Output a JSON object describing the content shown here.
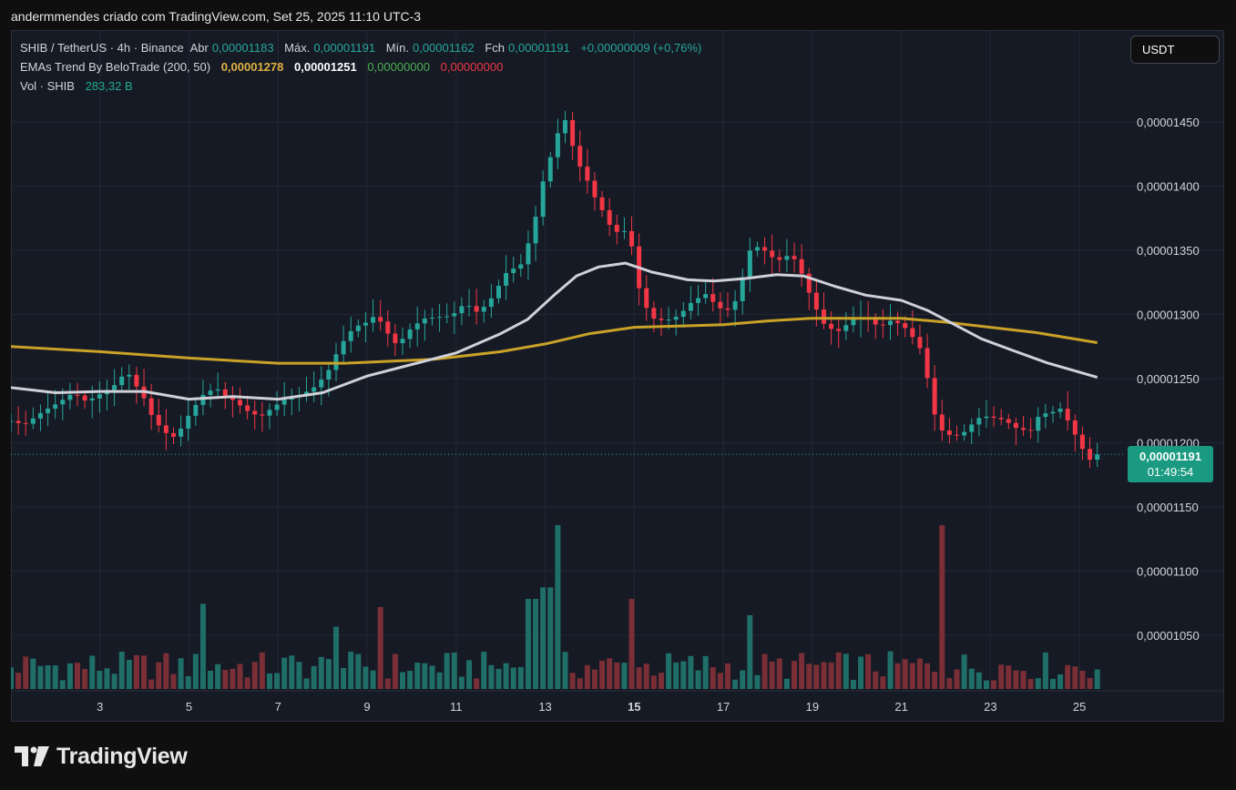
{
  "header": {
    "attribution": "andermmendes criado com TradingView.com, Set 25, 2025 11:10 UTC-3"
  },
  "legend": {
    "symbol": "SHIB / TetherUS · 4h · Binance",
    "open_label": "Abr",
    "open": "0,00001183",
    "high_label": "Máx.",
    "high": "0,00001191",
    "low_label": "Mín.",
    "low": "0,00001162",
    "close_label": "Fch",
    "close": "0,00001191",
    "change": "+0,00000009 (+0,76%)",
    "ema_title": "EMAs Trend By BeloTrade (200, 50)",
    "ema200": "0,00001278",
    "ema50": "0,00001251",
    "sig1": "0,00000000",
    "sig2": "0,00000000",
    "vol_title": "Vol · SHIB",
    "vol_value": "283,32 B"
  },
  "currency_button": "USDT",
  "price_tag": {
    "price": "0,00001191",
    "countdown": "01:49:54"
  },
  "brand": {
    "name": "TradingView"
  },
  "colors": {
    "up": "#26a69a",
    "down": "#f23645",
    "ema200": "#c9a227",
    "ema50": "#d0d0d8",
    "vol_up": "#1f6f68",
    "vol_down": "#7a2e36",
    "background": "#161a25"
  },
  "chart_data": {
    "type": "candlestick",
    "interval": "4h",
    "x_axis": {
      "range": [
        1.0,
        25.55
      ],
      "ticks": [
        {
          "label": "3",
          "value": 3,
          "bold": false
        },
        {
          "label": "5",
          "value": 5,
          "bold": false
        },
        {
          "label": "7",
          "value": 7,
          "bold": false
        },
        {
          "label": "9",
          "value": 9,
          "bold": false
        },
        {
          "label": "11",
          "value": 11,
          "bold": false
        },
        {
          "label": "13",
          "value": 13,
          "bold": false
        },
        {
          "label": "15",
          "value": 15,
          "bold": true
        },
        {
          "label": "17",
          "value": 17,
          "bold": false
        },
        {
          "label": "19",
          "value": 19,
          "bold": false
        },
        {
          "label": "21",
          "value": 21,
          "bold": false
        },
        {
          "label": "23",
          "value": 23,
          "bold": false
        },
        {
          "label": "25",
          "value": 25,
          "bold": false
        }
      ]
    },
    "y_axis": {
      "range": [
        1.01e-05,
        1.49e-05
      ],
      "ticks": [
        {
          "label": "0,00001450",
          "value": 1.45e-05
        },
        {
          "label": "0,00001400",
          "value": 1.4e-05
        },
        {
          "label": "0,00001350",
          "value": 1.35e-05
        },
        {
          "label": "0,00001300",
          "value": 1.3e-05
        },
        {
          "label": "0,00001250",
          "value": 1.25e-05
        },
        {
          "label": "0,00001200",
          "value": 1.2e-05
        },
        {
          "label": "0,00001150",
          "value": 1.15e-05
        },
        {
          "label": "0,00001100",
          "value": 1.1e-05
        },
        {
          "label": "0,00001050",
          "value": 1.05e-05
        }
      ]
    },
    "last_price": 1.191e-05,
    "price_points": [
      [
        1.0,
        1.217
      ],
      [
        1.3,
        1.214
      ],
      [
        1.7,
        1.224
      ],
      [
        2.1,
        1.232
      ],
      [
        2.4,
        1.239
      ],
      [
        2.7,
        1.232
      ],
      [
        3.0,
        1.238
      ],
      [
        3.3,
        1.244
      ],
      [
        3.6,
        1.256
      ],
      [
        3.8,
        1.245
      ],
      [
        4.0,
        1.234
      ],
      [
        4.2,
        1.218
      ],
      [
        4.5,
        1.207
      ],
      [
        4.7,
        1.204
      ],
      [
        5.0,
        1.222
      ],
      [
        5.3,
        1.237
      ],
      [
        5.6,
        1.243
      ],
      [
        5.8,
        1.237
      ],
      [
        6.0,
        1.233
      ],
      [
        6.3,
        1.225
      ],
      [
        6.6,
        1.22
      ],
      [
        6.9,
        1.228
      ],
      [
        7.2,
        1.235
      ],
      [
        7.5,
        1.237
      ],
      [
        7.8,
        1.243
      ],
      [
        8.1,
        1.254
      ],
      [
        8.4,
        1.276
      ],
      [
        8.7,
        1.29
      ],
      [
        9.0,
        1.294
      ],
      [
        9.2,
        1.3
      ],
      [
        9.4,
        1.289
      ],
      [
        9.6,
        1.277
      ],
      [
        9.8,
        1.281
      ],
      [
        10.0,
        1.29
      ],
      [
        10.3,
        1.297
      ],
      [
        10.6,
        1.298
      ],
      [
        10.9,
        1.299
      ],
      [
        11.2,
        1.309
      ],
      [
        11.5,
        1.301
      ],
      [
        11.8,
        1.313
      ],
      [
        12.0,
        1.325
      ],
      [
        12.2,
        1.337
      ],
      [
        12.4,
        1.334
      ],
      [
        12.6,
        1.353
      ],
      [
        12.8,
        1.378
      ],
      [
        13.0,
        1.412
      ],
      [
        13.2,
        1.43
      ],
      [
        13.4,
        1.457
      ],
      [
        13.55,
        1.44
      ],
      [
        13.7,
        1.42
      ],
      [
        13.9,
        1.408
      ],
      [
        14.1,
        1.392
      ],
      [
        14.3,
        1.38
      ],
      [
        14.5,
        1.366
      ],
      [
        14.7,
        1.363
      ],
      [
        14.9,
        1.368
      ],
      [
        15.0,
        1.333
      ],
      [
        15.2,
        1.31
      ],
      [
        15.4,
        1.297
      ],
      [
        15.7,
        1.295
      ],
      [
        16.0,
        1.299
      ],
      [
        16.3,
        1.31
      ],
      [
        16.6,
        1.316
      ],
      [
        16.9,
        1.305
      ],
      [
        17.2,
        1.303
      ],
      [
        17.4,
        1.325
      ],
      [
        17.6,
        1.35
      ],
      [
        17.8,
        1.353
      ],
      [
        18.0,
        1.348
      ],
      [
        18.2,
        1.341
      ],
      [
        18.4,
        1.346
      ],
      [
        18.6,
        1.343
      ],
      [
        18.8,
        1.329
      ],
      [
        19.0,
        1.31
      ],
      [
        19.3,
        1.29
      ],
      [
        19.6,
        1.287
      ],
      [
        19.9,
        1.296
      ],
      [
        20.2,
        1.298
      ],
      [
        20.5,
        1.29
      ],
      [
        20.8,
        1.296
      ],
      [
        21.1,
        1.289
      ],
      [
        21.4,
        1.276
      ],
      [
        21.6,
        1.248
      ],
      [
        21.8,
        1.213
      ],
      [
        22.0,
        1.207
      ],
      [
        22.2,
        1.205
      ],
      [
        22.4,
        1.208
      ],
      [
        22.6,
        1.215
      ],
      [
        22.8,
        1.221
      ],
      [
        23.0,
        1.22
      ],
      [
        23.3,
        1.218
      ],
      [
        23.6,
        1.211
      ],
      [
        23.9,
        1.209
      ],
      [
        24.1,
        1.222
      ],
      [
        24.4,
        1.224
      ],
      [
        24.6,
        1.227
      ],
      [
        24.8,
        1.213
      ],
      [
        25.0,
        1.2
      ],
      [
        25.2,
        1.186
      ],
      [
        25.4,
        1.191
      ]
    ],
    "ema200_points": [
      [
        1,
        1.275
      ],
      [
        3,
        1.271
      ],
      [
        5,
        1.266
      ],
      [
        7,
        1.262
      ],
      [
        8.5,
        1.262
      ],
      [
        10.5,
        1.265
      ],
      [
        12,
        1.271
      ],
      [
        13,
        1.277
      ],
      [
        14,
        1.285
      ],
      [
        15,
        1.29
      ],
      [
        16,
        1.291
      ],
      [
        17,
        1.292
      ],
      [
        18,
        1.295
      ],
      [
        19,
        1.297
      ],
      [
        20,
        1.297
      ],
      [
        21,
        1.297
      ],
      [
        22,
        1.294
      ],
      [
        23,
        1.29
      ],
      [
        24,
        1.286
      ],
      [
        25.4,
        1.278
      ]
    ],
    "ema50_points": [
      [
        1,
        1.243
      ],
      [
        2,
        1.239
      ],
      [
        3,
        1.24
      ],
      [
        4,
        1.24
      ],
      [
        5,
        1.234
      ],
      [
        6,
        1.236
      ],
      [
        7,
        1.234
      ],
      [
        8,
        1.239
      ],
      [
        9,
        1.252
      ],
      [
        10,
        1.261
      ],
      [
        11,
        1.27
      ],
      [
        12,
        1.285
      ],
      [
        12.6,
        1.296
      ],
      [
        13.2,
        1.315
      ],
      [
        13.7,
        1.33
      ],
      [
        14.2,
        1.337
      ],
      [
        14.8,
        1.34
      ],
      [
        15.4,
        1.333
      ],
      [
        16.2,
        1.327
      ],
      [
        16.8,
        1.326
      ],
      [
        17.5,
        1.328
      ],
      [
        18.2,
        1.331
      ],
      [
        18.8,
        1.33
      ],
      [
        19.5,
        1.322
      ],
      [
        20.2,
        1.315
      ],
      [
        21,
        1.311
      ],
      [
        21.6,
        1.303
      ],
      [
        22.2,
        1.292
      ],
      [
        22.8,
        1.281
      ],
      [
        23.5,
        1.272
      ],
      [
        24.3,
        1.262
      ],
      [
        25.4,
        1.251
      ]
    ],
    "volume_bars_up": 0.52,
    "volume_spikes": [
      [
        13.25,
        1.0
      ],
      [
        21.95,
        1.0
      ],
      [
        13.05,
        0.62
      ],
      [
        12.7,
        0.55
      ],
      [
        14.9,
        0.55
      ],
      [
        5.3,
        0.52
      ],
      [
        9.35,
        0.5
      ],
      [
        17.55,
        0.45
      ],
      [
        8.3,
        0.38
      ]
    ]
  }
}
